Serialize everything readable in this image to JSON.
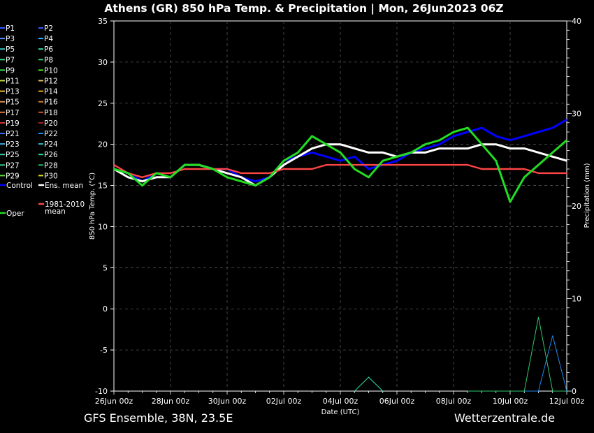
{
  "chart_data": {
    "type": "line",
    "title": "Athens  (GR)  850 hPa Temp. & Precipitation | Mon, 26Jun2023 06Z",
    "xlabel": "Date (UTC)",
    "ylabel_left": "850 hPa Temp. (°C)",
    "ylabel_right": "Precipitation (mm)",
    "footer_left": "GFS Ensemble, 38N, 23.5E",
    "footer_right": "Wetterzentrale.de",
    "x_ticks": [
      "26Jun 00z",
      "28Jun 00z",
      "30Jun 00z",
      "02Jul 00z",
      "04Jul 00z",
      "06Jul 00z",
      "08Jul 00z",
      "10Jul 00z",
      "12Jul 00z"
    ],
    "x_range_hours": [
      0,
      384
    ],
    "ylim_left": [
      -10,
      35
    ],
    "yticks_left": [
      "35",
      "30",
      "25",
      "20",
      "15",
      "10",
      "5",
      "0",
      "-5",
      "-10"
    ],
    "ylim_right": [
      0,
      40
    ],
    "yticks_right": [
      "40",
      "30",
      "20",
      "10",
      "0"
    ],
    "grid": true,
    "legend_position": "left, outside plot",
    "legend": [
      {
        "name": "P1",
        "color": "#3355ff"
      },
      {
        "name": "P2",
        "color": "#3355ff"
      },
      {
        "name": "P3",
        "color": "#4f8cff"
      },
      {
        "name": "P4",
        "color": "#2fb0ff"
      },
      {
        "name": "P5",
        "color": "#33c0c0"
      },
      {
        "name": "P6",
        "color": "#33d9a0"
      },
      {
        "name": "P7",
        "color": "#30d890"
      },
      {
        "name": "P8",
        "color": "#30c870"
      },
      {
        "name": "P9",
        "color": "#33dd55"
      },
      {
        "name": "P10",
        "color": "#44ee22"
      },
      {
        "name": "P11",
        "color": "#c8d840"
      },
      {
        "name": "P12",
        "color": "#e0c060"
      },
      {
        "name": "P13",
        "color": "#f0b830"
      },
      {
        "name": "P14",
        "color": "#e8a020"
      },
      {
        "name": "P15",
        "color": "#e09050"
      },
      {
        "name": "P16",
        "color": "#d08040"
      },
      {
        "name": "P17",
        "color": "#e07830"
      },
      {
        "name": "P18",
        "color": "#cc5522"
      },
      {
        "name": "P19",
        "color": "#dd3333"
      },
      {
        "name": "P20",
        "color": "#aa2222"
      },
      {
        "name": "P21",
        "color": "#3366ee"
      },
      {
        "name": "P22",
        "color": "#2288ee"
      },
      {
        "name": "P23",
        "color": "#33aadd"
      },
      {
        "name": "P24",
        "color": "#33bbcc"
      },
      {
        "name": "P25",
        "color": "#33ccaa"
      },
      {
        "name": "P26",
        "color": "#22ddaa"
      },
      {
        "name": "P27",
        "color": "#33cc88"
      },
      {
        "name": "P28",
        "color": "#22bb66"
      },
      {
        "name": "P29",
        "color": "#55dd33"
      },
      {
        "name": "P30",
        "color": "#dddd22"
      },
      {
        "name": "Control",
        "color": "#0000ff"
      },
      {
        "name": "Ens. mean",
        "color": "#ffffff"
      },
      {
        "name": "1981-2010 mean",
        "color": "#ff4444"
      },
      {
        "name": "Oper",
        "color": "#22dd22"
      }
    ],
    "series": [
      {
        "name": "Control",
        "color": "#0000ff",
        "x": [
          0,
          12,
          24,
          36,
          48,
          60,
          72,
          84,
          96,
          108,
          120,
          132,
          144,
          156,
          168,
          180,
          192,
          204,
          216,
          228,
          240,
          252,
          264,
          276,
          288,
          300,
          312,
          324,
          336,
          348,
          360,
          372,
          384
        ],
        "y": [
          17,
          16.5,
          15.5,
          16.5,
          16,
          17.5,
          17.5,
          17,
          17,
          16,
          15.5,
          16,
          18,
          18.5,
          19,
          18.5,
          18,
          18.5,
          17,
          17.5,
          18,
          19,
          19.5,
          20,
          21,
          21.5,
          22,
          21,
          20.5,
          21,
          21.5,
          22,
          23
        ]
      },
      {
        "name": "Ens. mean",
        "color": "#ffffff",
        "x": [
          0,
          12,
          24,
          36,
          48,
          60,
          72,
          84,
          96,
          108,
          120,
          132,
          144,
          156,
          168,
          180,
          192,
          204,
          216,
          228,
          240,
          252,
          264,
          276,
          288,
          300,
          312,
          324,
          336,
          348,
          360,
          372,
          384
        ],
        "y": [
          17,
          16,
          15.5,
          16,
          16,
          17.5,
          17.5,
          17,
          16.5,
          16,
          15,
          16,
          17.5,
          18.5,
          19.5,
          20,
          20,
          19.5,
          19,
          19,
          18.5,
          19,
          19,
          19.5,
          19.5,
          19.5,
          20,
          20,
          19.5,
          19.5,
          19,
          18.5,
          18
        ]
      },
      {
        "name": "1981-2010 mean",
        "color": "#ff4444",
        "x": [
          0,
          12,
          24,
          36,
          48,
          60,
          72,
          84,
          96,
          108,
          120,
          132,
          144,
          156,
          168,
          180,
          192,
          204,
          216,
          228,
          240,
          252,
          264,
          276,
          288,
          300,
          312,
          324,
          336,
          348,
          360,
          372,
          384
        ],
        "y": [
          17.5,
          16.5,
          16,
          16.5,
          16.5,
          17,
          17,
          17,
          17,
          16.5,
          16.5,
          16.5,
          17,
          17,
          17,
          17.5,
          17.5,
          17.5,
          17.5,
          17.5,
          17.5,
          17.5,
          17.5,
          17.5,
          17.5,
          17.5,
          17,
          17,
          17,
          17,
          16.5,
          16.5,
          16.5
        ]
      },
      {
        "name": "Oper",
        "color": "#22dd22",
        "x": [
          0,
          12,
          24,
          36,
          48,
          60,
          72,
          84,
          96,
          108,
          120,
          132,
          144,
          156,
          168,
          180,
          192,
          204,
          216,
          228,
          240,
          252,
          264,
          276,
          288,
          300,
          312,
          324,
          336,
          348,
          360,
          372,
          384
        ],
        "y": [
          17,
          16.5,
          15,
          16.5,
          16,
          17.5,
          17.5,
          17,
          16,
          15.5,
          15,
          16,
          18,
          19,
          21,
          20,
          19,
          17,
          16,
          18,
          18.5,
          19,
          20,
          20.5,
          21.5,
          22,
          20,
          18,
          13,
          16,
          17.5,
          19,
          20.5
        ]
      }
    ],
    "precip_series": [
      {
        "name": "P22",
        "color": "#2288ee",
        "x": [
          300,
          312,
          324,
          336,
          348,
          360,
          372,
          384
        ],
        "y": [
          0,
          0,
          0,
          0,
          0,
          0,
          6,
          0
        ]
      },
      {
        "name": "P8",
        "color": "#30c870",
        "x": [
          300,
          312,
          324,
          336,
          348,
          360,
          372,
          384
        ],
        "y": [
          0,
          0,
          0,
          0,
          0,
          8,
          0,
          0
        ]
      },
      {
        "name": "P26",
        "color": "#22ddaa",
        "x": [
          204,
          216,
          228
        ],
        "y": [
          0,
          1.5,
          0
        ]
      }
    ]
  }
}
